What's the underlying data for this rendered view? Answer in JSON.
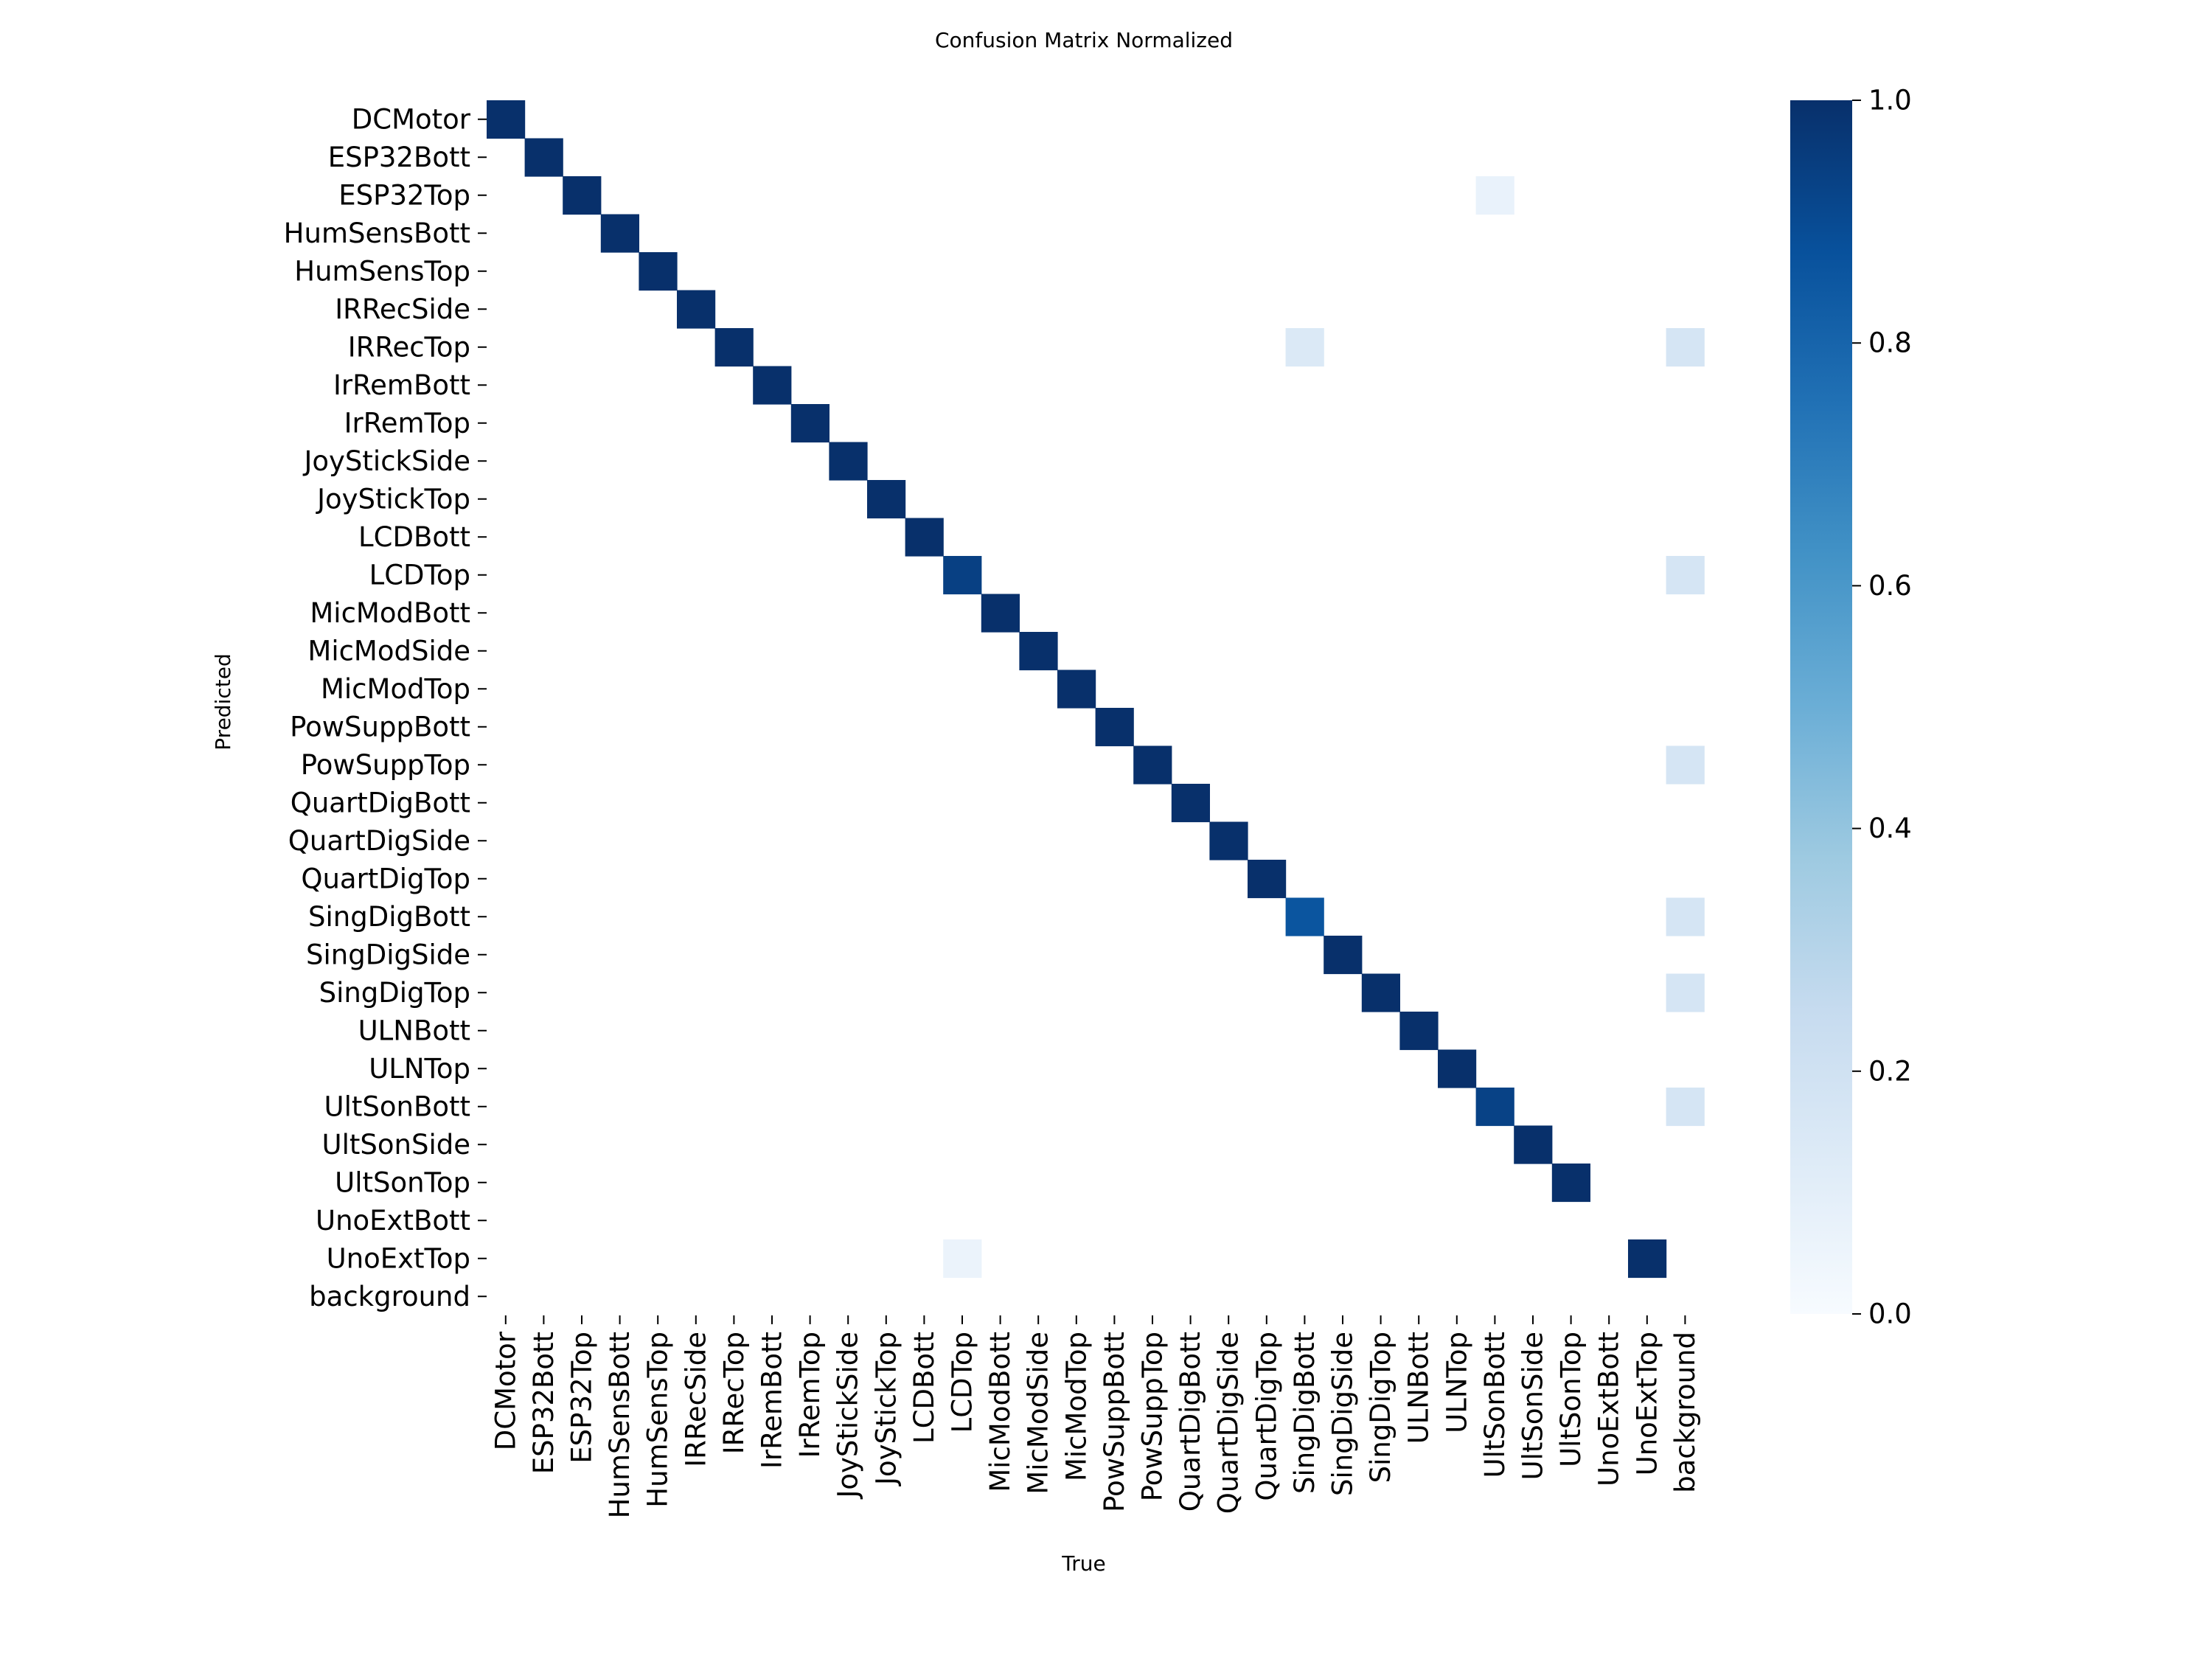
{
  "chart_data": {
    "type": "heatmap",
    "title": "Confusion Matrix Normalized",
    "xlabel": "True",
    "ylabel": "Predicted",
    "x_categories": [
      "DCMotor",
      "ESP32Bott",
      "ESP32Top",
      "HumSensBott",
      "HumSensTop",
      "IRRecSide",
      "IRRecTop",
      "IrRemBott",
      "IrRemTop",
      "JoyStickSide",
      "JoyStickTop",
      "LCDBott",
      "LCDTop",
      "MicModBott",
      "MicModSide",
      "MicModTop",
      "PowSuppBott",
      "PowSuppTop",
      "QuartDigBott",
      "QuartDigSide",
      "QuartDigTop",
      "SingDigBott",
      "SingDigSide",
      "SingDigTop",
      "ULNBott",
      "ULNTop",
      "UltSonBott",
      "UltSonSide",
      "UltSonTop",
      "UnoExtBott",
      "UnoExtTop",
      "background"
    ],
    "y_categories": [
      "DCMotor",
      "ESP32Bott",
      "ESP32Top",
      "HumSensBott",
      "HumSensTop",
      "IRRecSide",
      "IRRecTop",
      "IrRemBott",
      "IrRemTop",
      "JoyStickSide",
      "JoyStickTop",
      "LCDBott",
      "LCDTop",
      "MicModBott",
      "MicModSide",
      "MicModTop",
      "PowSuppBott",
      "PowSuppTop",
      "QuartDigBott",
      "QuartDigSide",
      "QuartDigTop",
      "SingDigBott",
      "SingDigSide",
      "SingDigTop",
      "ULNBott",
      "ULNTop",
      "UltSonBott",
      "UltSonSide",
      "UltSonTop",
      "UnoExtBott",
      "UnoExtTop",
      "background"
    ],
    "cells": [
      {
        "x": "DCMotor",
        "y": "DCMotor",
        "value": 1.0
      },
      {
        "x": "ESP32Bott",
        "y": "ESP32Bott",
        "value": 1.0
      },
      {
        "x": "ESP32Top",
        "y": "ESP32Top",
        "value": 1.0
      },
      {
        "x": "HumSensBott",
        "y": "HumSensBott",
        "value": 1.0
      },
      {
        "x": "HumSensTop",
        "y": "HumSensTop",
        "value": 1.0
      },
      {
        "x": "IRRecSide",
        "y": "IRRecSide",
        "value": 1.0
      },
      {
        "x": "IRRecTop",
        "y": "IRRecTop",
        "value": 1.0
      },
      {
        "x": "IrRemBott",
        "y": "IrRemBott",
        "value": 1.0
      },
      {
        "x": "IrRemTop",
        "y": "IrRemTop",
        "value": 1.0
      },
      {
        "x": "JoyStickSide",
        "y": "JoyStickSide",
        "value": 1.0
      },
      {
        "x": "JoyStickTop",
        "y": "JoyStickTop",
        "value": 1.0
      },
      {
        "x": "LCDBott",
        "y": "LCDBott",
        "value": 1.0
      },
      {
        "x": "LCDTop",
        "y": "LCDTop",
        "value": 0.94
      },
      {
        "x": "MicModBott",
        "y": "MicModBott",
        "value": 1.0
      },
      {
        "x": "MicModSide",
        "y": "MicModSide",
        "value": 1.0
      },
      {
        "x": "MicModTop",
        "y": "MicModTop",
        "value": 1.0
      },
      {
        "x": "PowSuppBott",
        "y": "PowSuppBott",
        "value": 1.0
      },
      {
        "x": "PowSuppTop",
        "y": "PowSuppTop",
        "value": 1.0
      },
      {
        "x": "QuartDigBott",
        "y": "QuartDigBott",
        "value": 1.0
      },
      {
        "x": "QuartDigSide",
        "y": "QuartDigSide",
        "value": 1.0
      },
      {
        "x": "QuartDigTop",
        "y": "QuartDigTop",
        "value": 1.0
      },
      {
        "x": "SingDigBott",
        "y": "SingDigBott",
        "value": 0.86
      },
      {
        "x": "SingDigSide",
        "y": "SingDigSide",
        "value": 1.0
      },
      {
        "x": "SingDigTop",
        "y": "SingDigTop",
        "value": 1.0
      },
      {
        "x": "ULNBott",
        "y": "ULNBott",
        "value": 1.0
      },
      {
        "x": "ULNTop",
        "y": "ULNTop",
        "value": 1.0
      },
      {
        "x": "UltSonBott",
        "y": "UltSonBott",
        "value": 0.93
      },
      {
        "x": "UltSonSide",
        "y": "UltSonSide",
        "value": 1.0
      },
      {
        "x": "UltSonTop",
        "y": "UltSonTop",
        "value": 1.0
      },
      {
        "x": "UnoExtTop",
        "y": "UnoExtTop",
        "value": 1.0
      },
      {
        "x": "UltSonBott",
        "y": "ESP32Top",
        "value": 0.07
      },
      {
        "x": "SingDigBott",
        "y": "IRRecTop",
        "value": 0.14
      },
      {
        "x": "background",
        "y": "IRRecTop",
        "value": 0.17
      },
      {
        "x": "background",
        "y": "LCDTop",
        "value": 0.17
      },
      {
        "x": "background",
        "y": "PowSuppTop",
        "value": 0.17
      },
      {
        "x": "background",
        "y": "SingDigBott",
        "value": 0.17
      },
      {
        "x": "background",
        "y": "SingDigTop",
        "value": 0.17
      },
      {
        "x": "background",
        "y": "UltSonBott",
        "value": 0.17
      },
      {
        "x": "LCDTop",
        "y": "UnoExtTop",
        "value": 0.06
      }
    ],
    "colorbar": {
      "range": [
        0.0,
        1.0
      ],
      "ticks": [
        "0.0",
        "0.2",
        "0.4",
        "0.6",
        "0.8",
        "1.0"
      ],
      "colormap": "Blues"
    },
    "grid": false
  }
}
